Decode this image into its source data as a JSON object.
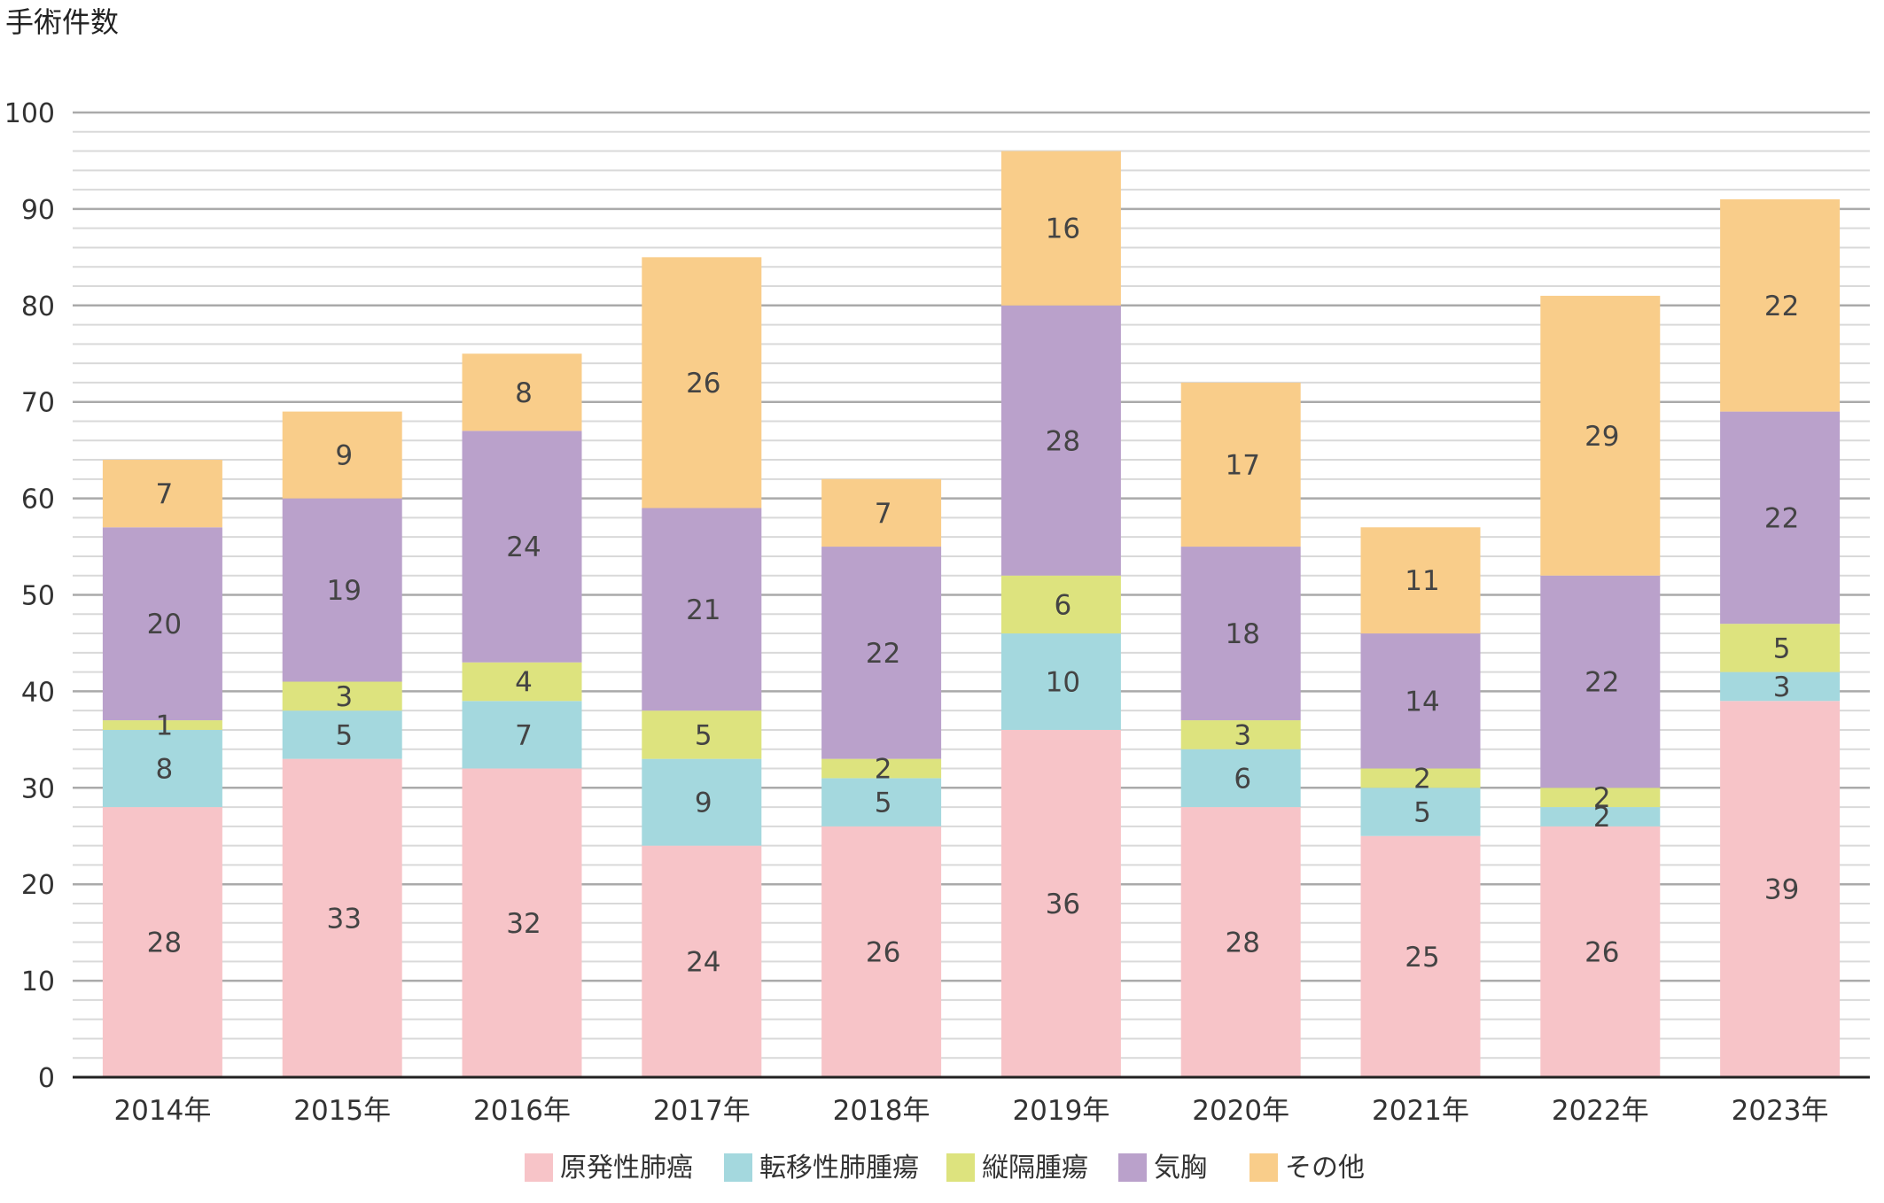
{
  "chart_data": {
    "type": "bar",
    "stacked": true,
    "y_axis_title": "手術件数",
    "ylim": [
      0,
      100
    ],
    "y_ticks": [
      "0",
      "10",
      "20",
      "30",
      "40",
      "50",
      "60",
      "70",
      "80",
      "90",
      "100"
    ],
    "grid": true,
    "legend_position": "bottom",
    "categories": [
      "2014年",
      "2015年",
      "2016年",
      "2017年",
      "2018年",
      "2019年",
      "2020年",
      "2021年",
      "2022年",
      "2023年"
    ],
    "series": [
      {
        "name": "原発性肺癌",
        "color": "#f7c4c8",
        "values": [
          28,
          33,
          32,
          24,
          26,
          36,
          28,
          25,
          26,
          39
        ]
      },
      {
        "name": "転移性肺腫瘍",
        "color": "#a4d8de",
        "values": [
          8,
          5,
          7,
          9,
          5,
          10,
          6,
          5,
          2,
          3
        ]
      },
      {
        "name": "縦隔腫瘍",
        "color": "#dde37e",
        "values": [
          1,
          3,
          4,
          5,
          2,
          6,
          3,
          2,
          2,
          5
        ]
      },
      {
        "name": "気胸",
        "color": "#baa1cb",
        "values": [
          20,
          19,
          24,
          21,
          22,
          28,
          18,
          14,
          22,
          22
        ]
      },
      {
        "name": "その他",
        "color": "#f9cd8a",
        "values": [
          7,
          9,
          8,
          26,
          7,
          16,
          17,
          11,
          29,
          22
        ]
      }
    ]
  }
}
